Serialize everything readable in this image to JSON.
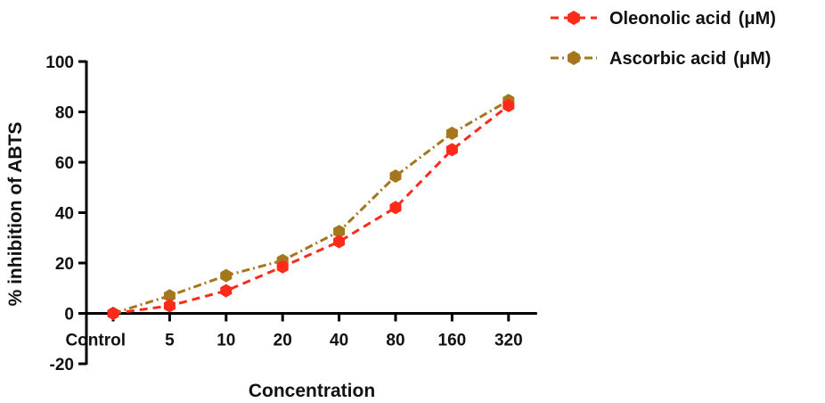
{
  "chart_data": {
    "type": "line",
    "title": "",
    "xlabel": "Concentration",
    "ylabel": "% inhibition of ABTS",
    "categories": [
      "Control",
      "5",
      "10",
      "20",
      "40",
      "80",
      "160",
      "320"
    ],
    "ylim": [
      -20,
      100
    ],
    "yticks": [
      "-20",
      "0",
      "20",
      "40",
      "60",
      "80",
      "100"
    ],
    "grid": false,
    "legend_position": "top-right",
    "series": [
      {
        "name": "Oleonolic acid",
        "unit": "(μM)",
        "color": "#ff2a1a",
        "line_style": "dashed",
        "marker": "hexagon",
        "values": [
          0,
          3,
          9,
          18.5,
          28.5,
          42,
          65,
          82.5
        ]
      },
      {
        "name": "Ascorbic acid",
        "unit": "(μM)",
        "color": "#a6761d",
        "line_style": "dash-dot",
        "marker": "hexagon",
        "values": [
          0,
          7,
          15,
          21,
          32.5,
          54.5,
          71.5,
          84.5
        ]
      }
    ]
  }
}
